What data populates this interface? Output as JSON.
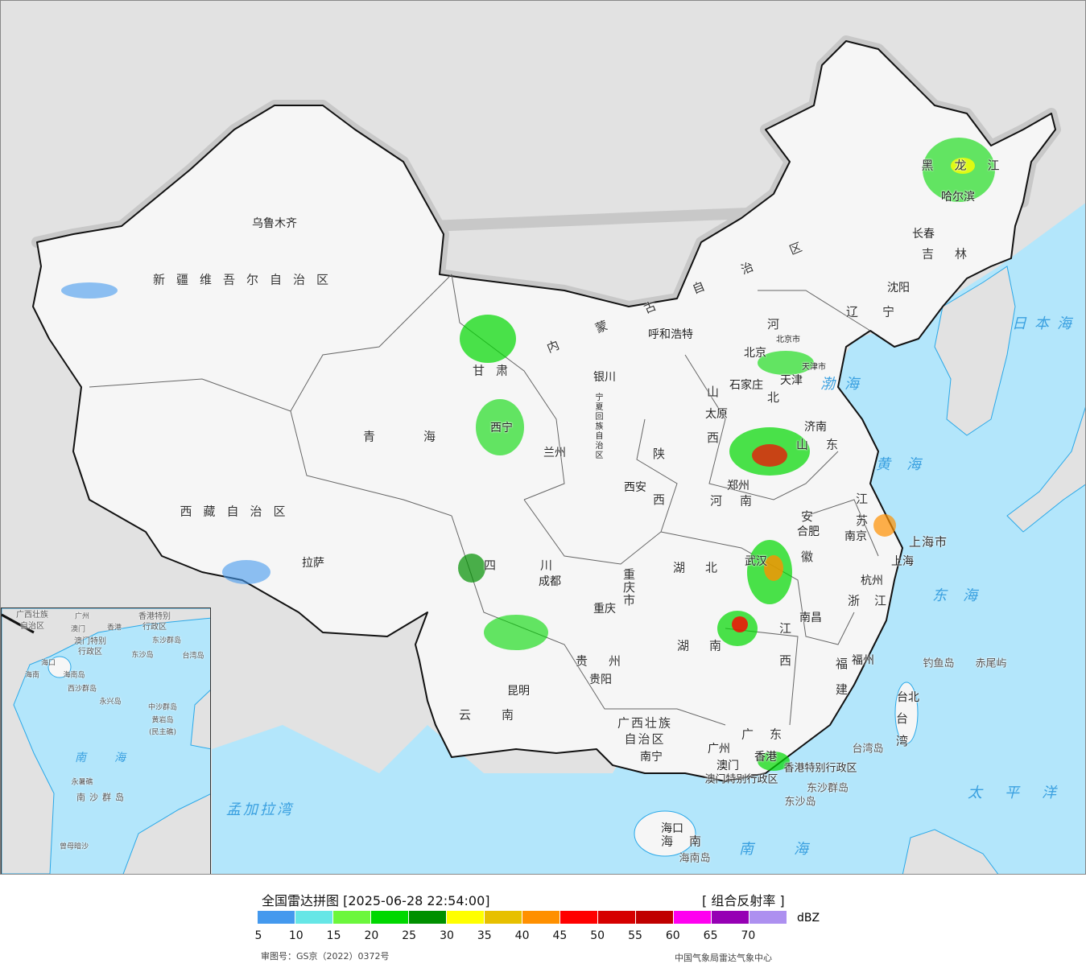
{
  "map": {
    "cities": [
      "乌鲁木齐",
      "拉萨",
      "西宁",
      "兰州",
      "银川",
      "呼和浩特",
      "北京",
      "天津",
      "石家庄",
      "太原",
      "济南",
      "郑州",
      "西安",
      "合肥",
      "南京",
      "上海",
      "杭州",
      "武汉",
      "南昌",
      "福州",
      "台北",
      "广州",
      "香港",
      "澳门",
      "南宁",
      "海口",
      "贵阳",
      "昆明",
      "成都",
      "重庆",
      "长春",
      "哈尔滨",
      "沈阳"
    ],
    "provinces": [
      "新疆维吾尔自治区",
      "西藏自治区",
      "青海",
      "甘肃",
      "四川",
      "云南",
      "贵州",
      "广西壮族",
      "自治区",
      "广东",
      "海南",
      "湖南",
      "湖北",
      "江西",
      "福建",
      "浙江",
      "安徽",
      "江苏",
      "山东",
      "河南",
      "河北",
      "山西",
      "陕西",
      "宁夏回族自治区",
      "内蒙古自治区",
      "辽宁",
      "吉林",
      "黑龙江",
      "重庆市",
      "上海市",
      "北京市",
      "天津市",
      "台湾",
      "香港特别行政区",
      "澳门特别行政区"
    ],
    "islands": [
      "东沙群岛",
      "东沙岛",
      "台湾岛",
      "钓鱼岛",
      "赤尾屿",
      "海南岛"
    ],
    "seas": [
      "渤海",
      "黄海",
      "东海",
      "太平洋",
      "日本海",
      "南海",
      "孟加拉湾"
    ],
    "inset_labels": [
      "广西壮族",
      "自治区",
      "广州",
      "澳门",
      "香港",
      "澳门特别",
      "行政区",
      "香港特别",
      "行政区",
      "东沙群岛",
      "东沙岛",
      "海口",
      "海南",
      "海南岛",
      "西沙群岛",
      "永兴岛",
      "中沙群岛",
      "黄岩岛",
      "(民主礁)",
      "南海",
      "永暑礁",
      "南沙群岛",
      "曾母暗沙",
      "台湾岛"
    ]
  },
  "legend": {
    "title": "全国雷达拼图 [2025-06-28 22:54:00]",
    "product": "[ 组合反射率 ]",
    "unit": "dBZ",
    "ticks": [
      "5",
      "10",
      "15",
      "20",
      "25",
      "30",
      "35",
      "40",
      "45",
      "50",
      "55",
      "60",
      "65",
      "70"
    ],
    "colors": [
      "#4499ee",
      "#66e6e6",
      "#6cf73c",
      "#00d800",
      "#009000",
      "#ffff00",
      "#e7c000",
      "#ff9000",
      "#ff0000",
      "#d60000",
      "#c00000",
      "#ff00f0",
      "#9600b4",
      "#ad90f0"
    ],
    "approval": "审图号：GS京（2022）0372号",
    "organization": "中国气象局雷达气象中心"
  }
}
